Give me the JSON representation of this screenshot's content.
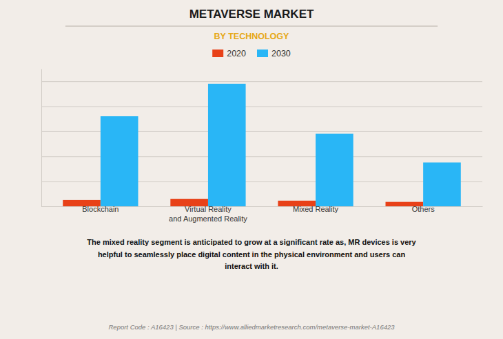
{
  "chart_data": {
    "type": "bar",
    "title": "METAVERSE MARKET",
    "subtitle": "BY TECHNOLOGY",
    "categories": [
      "Blockchain",
      "Virtual Reality\nand Augmented Reality",
      "Mixed Reality",
      "Others"
    ],
    "series": [
      {
        "name": "2020",
        "color": "#e84118",
        "values": [
          0.5,
          0.6,
          0.45,
          0.35
        ]
      },
      {
        "name": "2030",
        "color": "#29b6f6",
        "values": [
          7.2,
          9.8,
          5.8,
          3.5
        ]
      }
    ],
    "ylim": [
      0,
      11
    ],
    "yticks": [
      0,
      2,
      4,
      6,
      8,
      10
    ],
    "grid": true,
    "tick_labels": "x",
    "legend": "top",
    "annotation": "The mixed reality segment is anticipated to grow at a significant rate as, MR devices is very\nhelpful to seamlessly place digital content in the physical environment and users can\ninteract with it.",
    "footer": "Report Code : A16423  |  Source : https://www.alliedmarketresearch.com/metaverse-market-A16423"
  }
}
